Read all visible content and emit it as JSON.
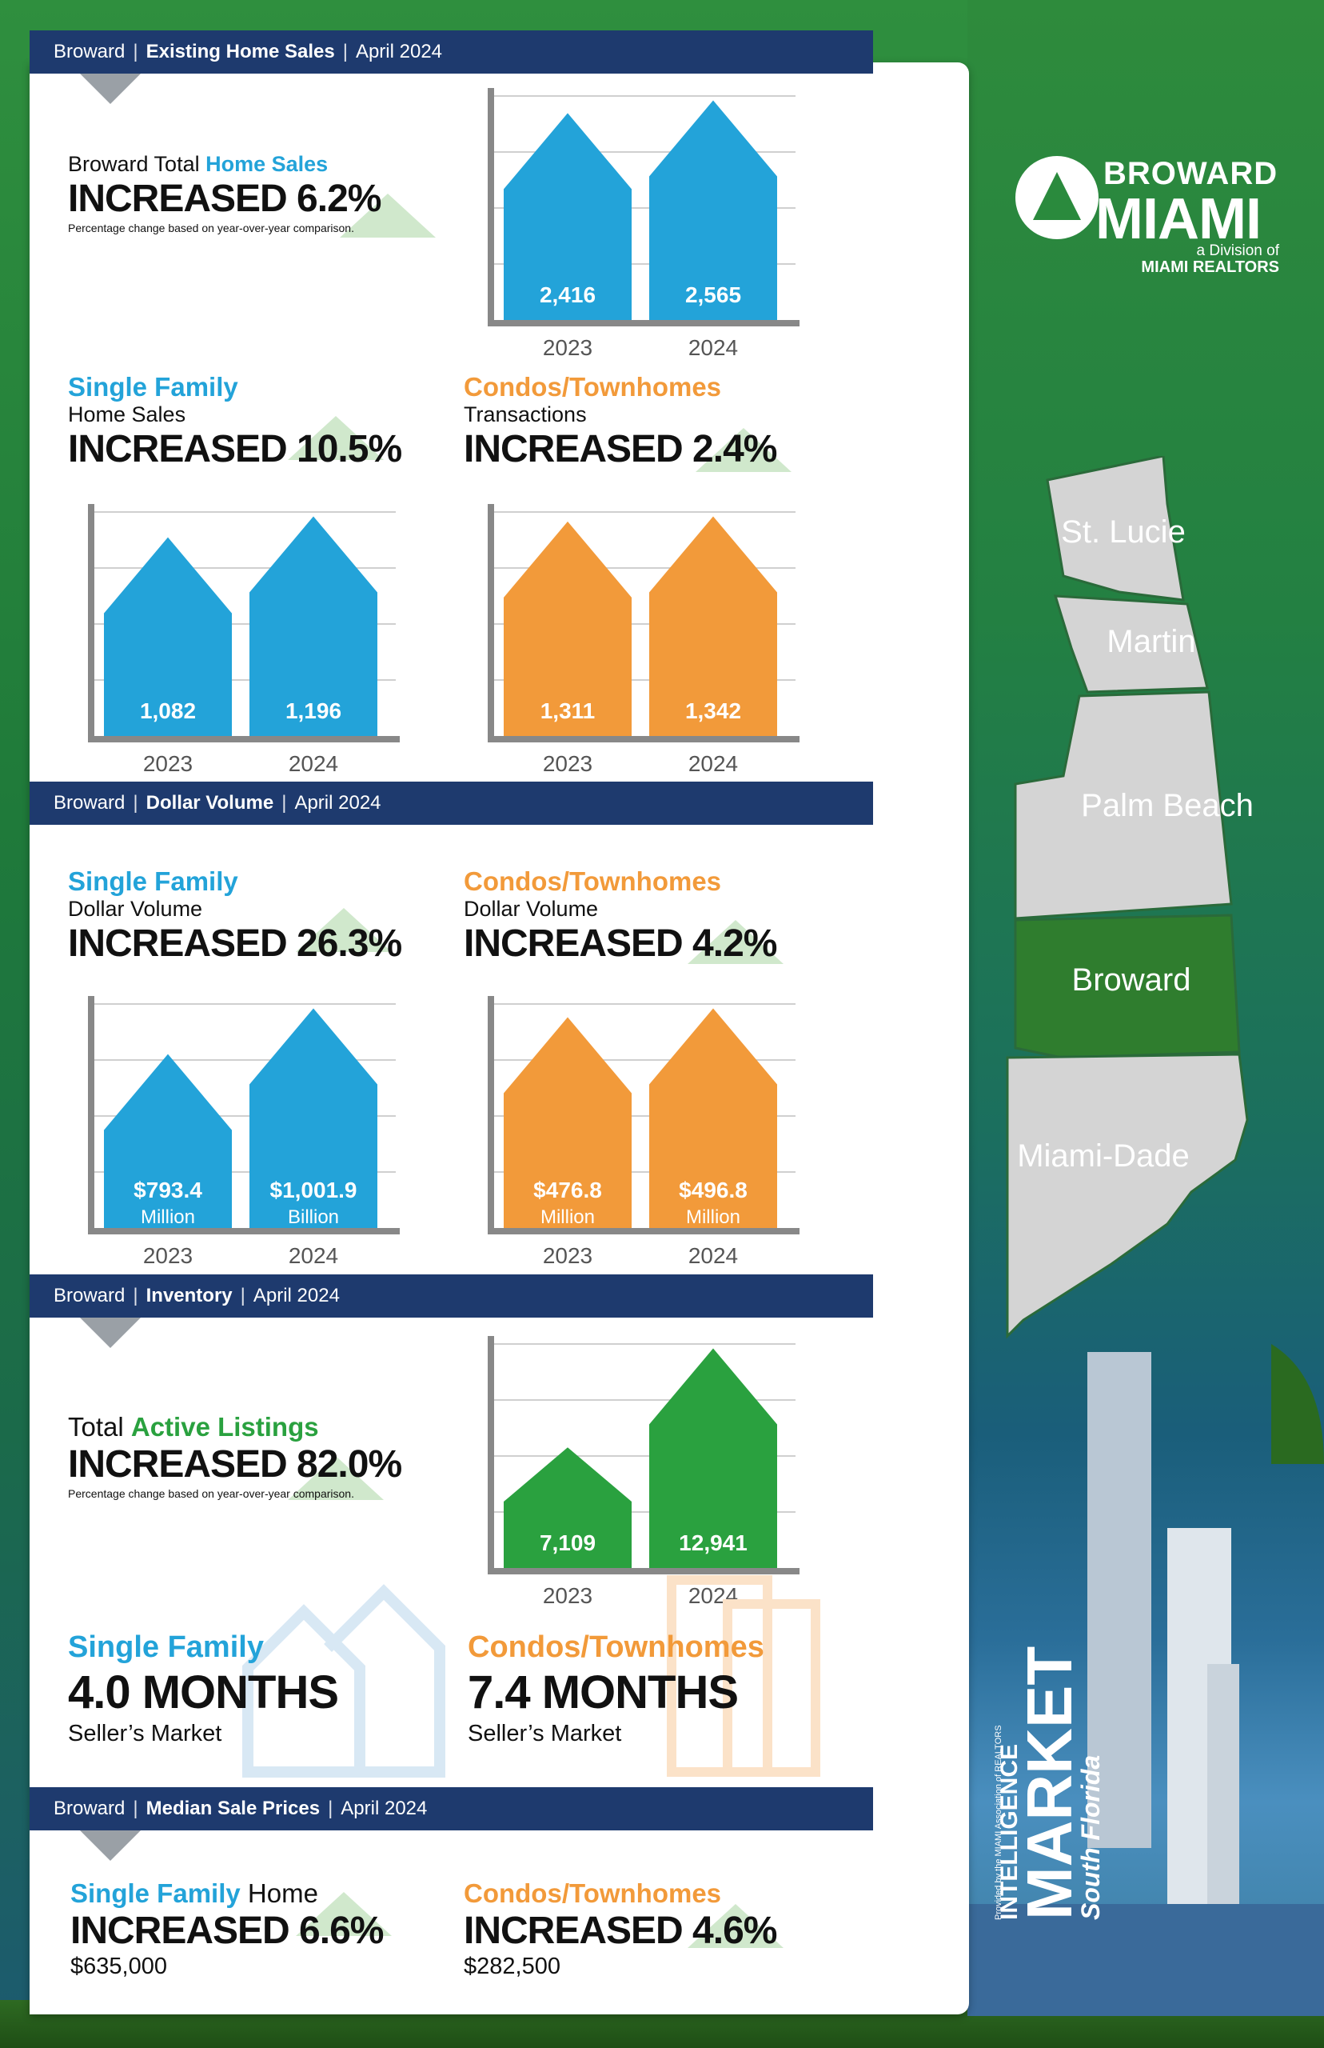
{
  "colors": {
    "navy": "#1e3a6e",
    "blue": "#23a3d9",
    "orange": "#f29a3a",
    "green": "#2aa13f",
    "axis": "#888888"
  },
  "header": {
    "area": "Broward",
    "section": "Existing Home Sales",
    "date": "April 2024"
  },
  "total_sales": {
    "prefix": "Broward Total ",
    "highlight": "Home Sales",
    "headline": "INCREASED 6.2%",
    "note": "Percentage change based on year-over-year comparison."
  },
  "sf_sales": {
    "title": "Single Family",
    "subtitle": "Home Sales",
    "headline": "INCREASED 10.5%"
  },
  "condo_sales": {
    "title": "Condos/Townhomes",
    "subtitle": "Transactions",
    "headline": "INCREASED 2.4%"
  },
  "dollar_header": {
    "area": "Broward",
    "section": "Dollar Volume",
    "date": "April 2024"
  },
  "sf_dollar": {
    "title": "Single Family",
    "subtitle": "Dollar Volume",
    "headline": "INCREASED 26.3%"
  },
  "condo_dollar": {
    "title": "Condos/Townhomes",
    "subtitle": "Dollar Volume",
    "headline": "INCREASED 4.2%"
  },
  "inventory_header": {
    "area": "Broward",
    "section": "Inventory",
    "date": "April 2024"
  },
  "listings": {
    "prefix": "Total ",
    "highlight": "Active Listings",
    "headline": "INCREASED 82.0%",
    "note": "Percentage change based on year-over-year comparison."
  },
  "sf_months": {
    "title": "Single Family",
    "headline": "4.0 MONTHS",
    "sub": "Seller’s Market"
  },
  "condo_months": {
    "title": "Condos/Townhomes",
    "headline": "7.4 MONTHS",
    "sub": "Seller’s Market"
  },
  "median_header": {
    "area": "Broward",
    "section": "Median Sale Prices",
    "date": "April 2024"
  },
  "sf_median": {
    "title": "Single Family",
    "title_suffix": " Home",
    "headline": "INCREASED 6.6%",
    "price": "$635,000"
  },
  "condo_median": {
    "title": "Condos/Townhomes",
    "headline": "INCREASED 4.6%",
    "price": "$282,500"
  },
  "logo": {
    "line1": "BROWARD",
    "line2": "MIAMI",
    "line3": "a Division of",
    "line4": "MIAMI REALTORS"
  },
  "map": {
    "regions": [
      "St. Lucie",
      "Martin",
      "Palm Beach",
      "Broward",
      "Miami-Dade"
    ]
  },
  "brand": {
    "line1": "South Florida",
    "line2": "MARKET",
    "line3": "INTELLIGENCE",
    "line4": "Provided by the MIAMI Association of REALTORS"
  },
  "chart_data": [
    {
      "id": "total",
      "type": "bar",
      "categories": [
        "2023",
        "2024"
      ],
      "values": [
        2416,
        2565
      ],
      "labels": [
        "2,416",
        "2,565"
      ],
      "color": "blue"
    },
    {
      "id": "sf_sales",
      "type": "bar",
      "categories": [
        "2023",
        "2024"
      ],
      "values": [
        1082,
        1196
      ],
      "labels": [
        "1,082",
        "1,196"
      ],
      "color": "blue"
    },
    {
      "id": "condo_sales",
      "type": "bar",
      "categories": [
        "2023",
        "2024"
      ],
      "values": [
        1311,
        1342
      ],
      "labels": [
        "1,311",
        "1,342"
      ],
      "color": "orange"
    },
    {
      "id": "sf_dollar",
      "type": "bar",
      "categories": [
        "2023",
        "2024"
      ],
      "values": [
        793.4,
        1001.9
      ],
      "labels": [
        "$793.4",
        "$1,001.9"
      ],
      "units": [
        "Million",
        "Billion"
      ],
      "color": "blue"
    },
    {
      "id": "condo_dollar",
      "type": "bar",
      "categories": [
        "2023",
        "2024"
      ],
      "values": [
        476.8,
        496.8
      ],
      "labels": [
        "$476.8",
        "$496.8"
      ],
      "units": [
        "Million",
        "Million"
      ],
      "color": "orange"
    },
    {
      "id": "listings",
      "type": "bar",
      "categories": [
        "2023",
        "2024"
      ],
      "values": [
        7109,
        12941
      ],
      "labels": [
        "7,109",
        "12,941"
      ],
      "color": "green"
    }
  ]
}
